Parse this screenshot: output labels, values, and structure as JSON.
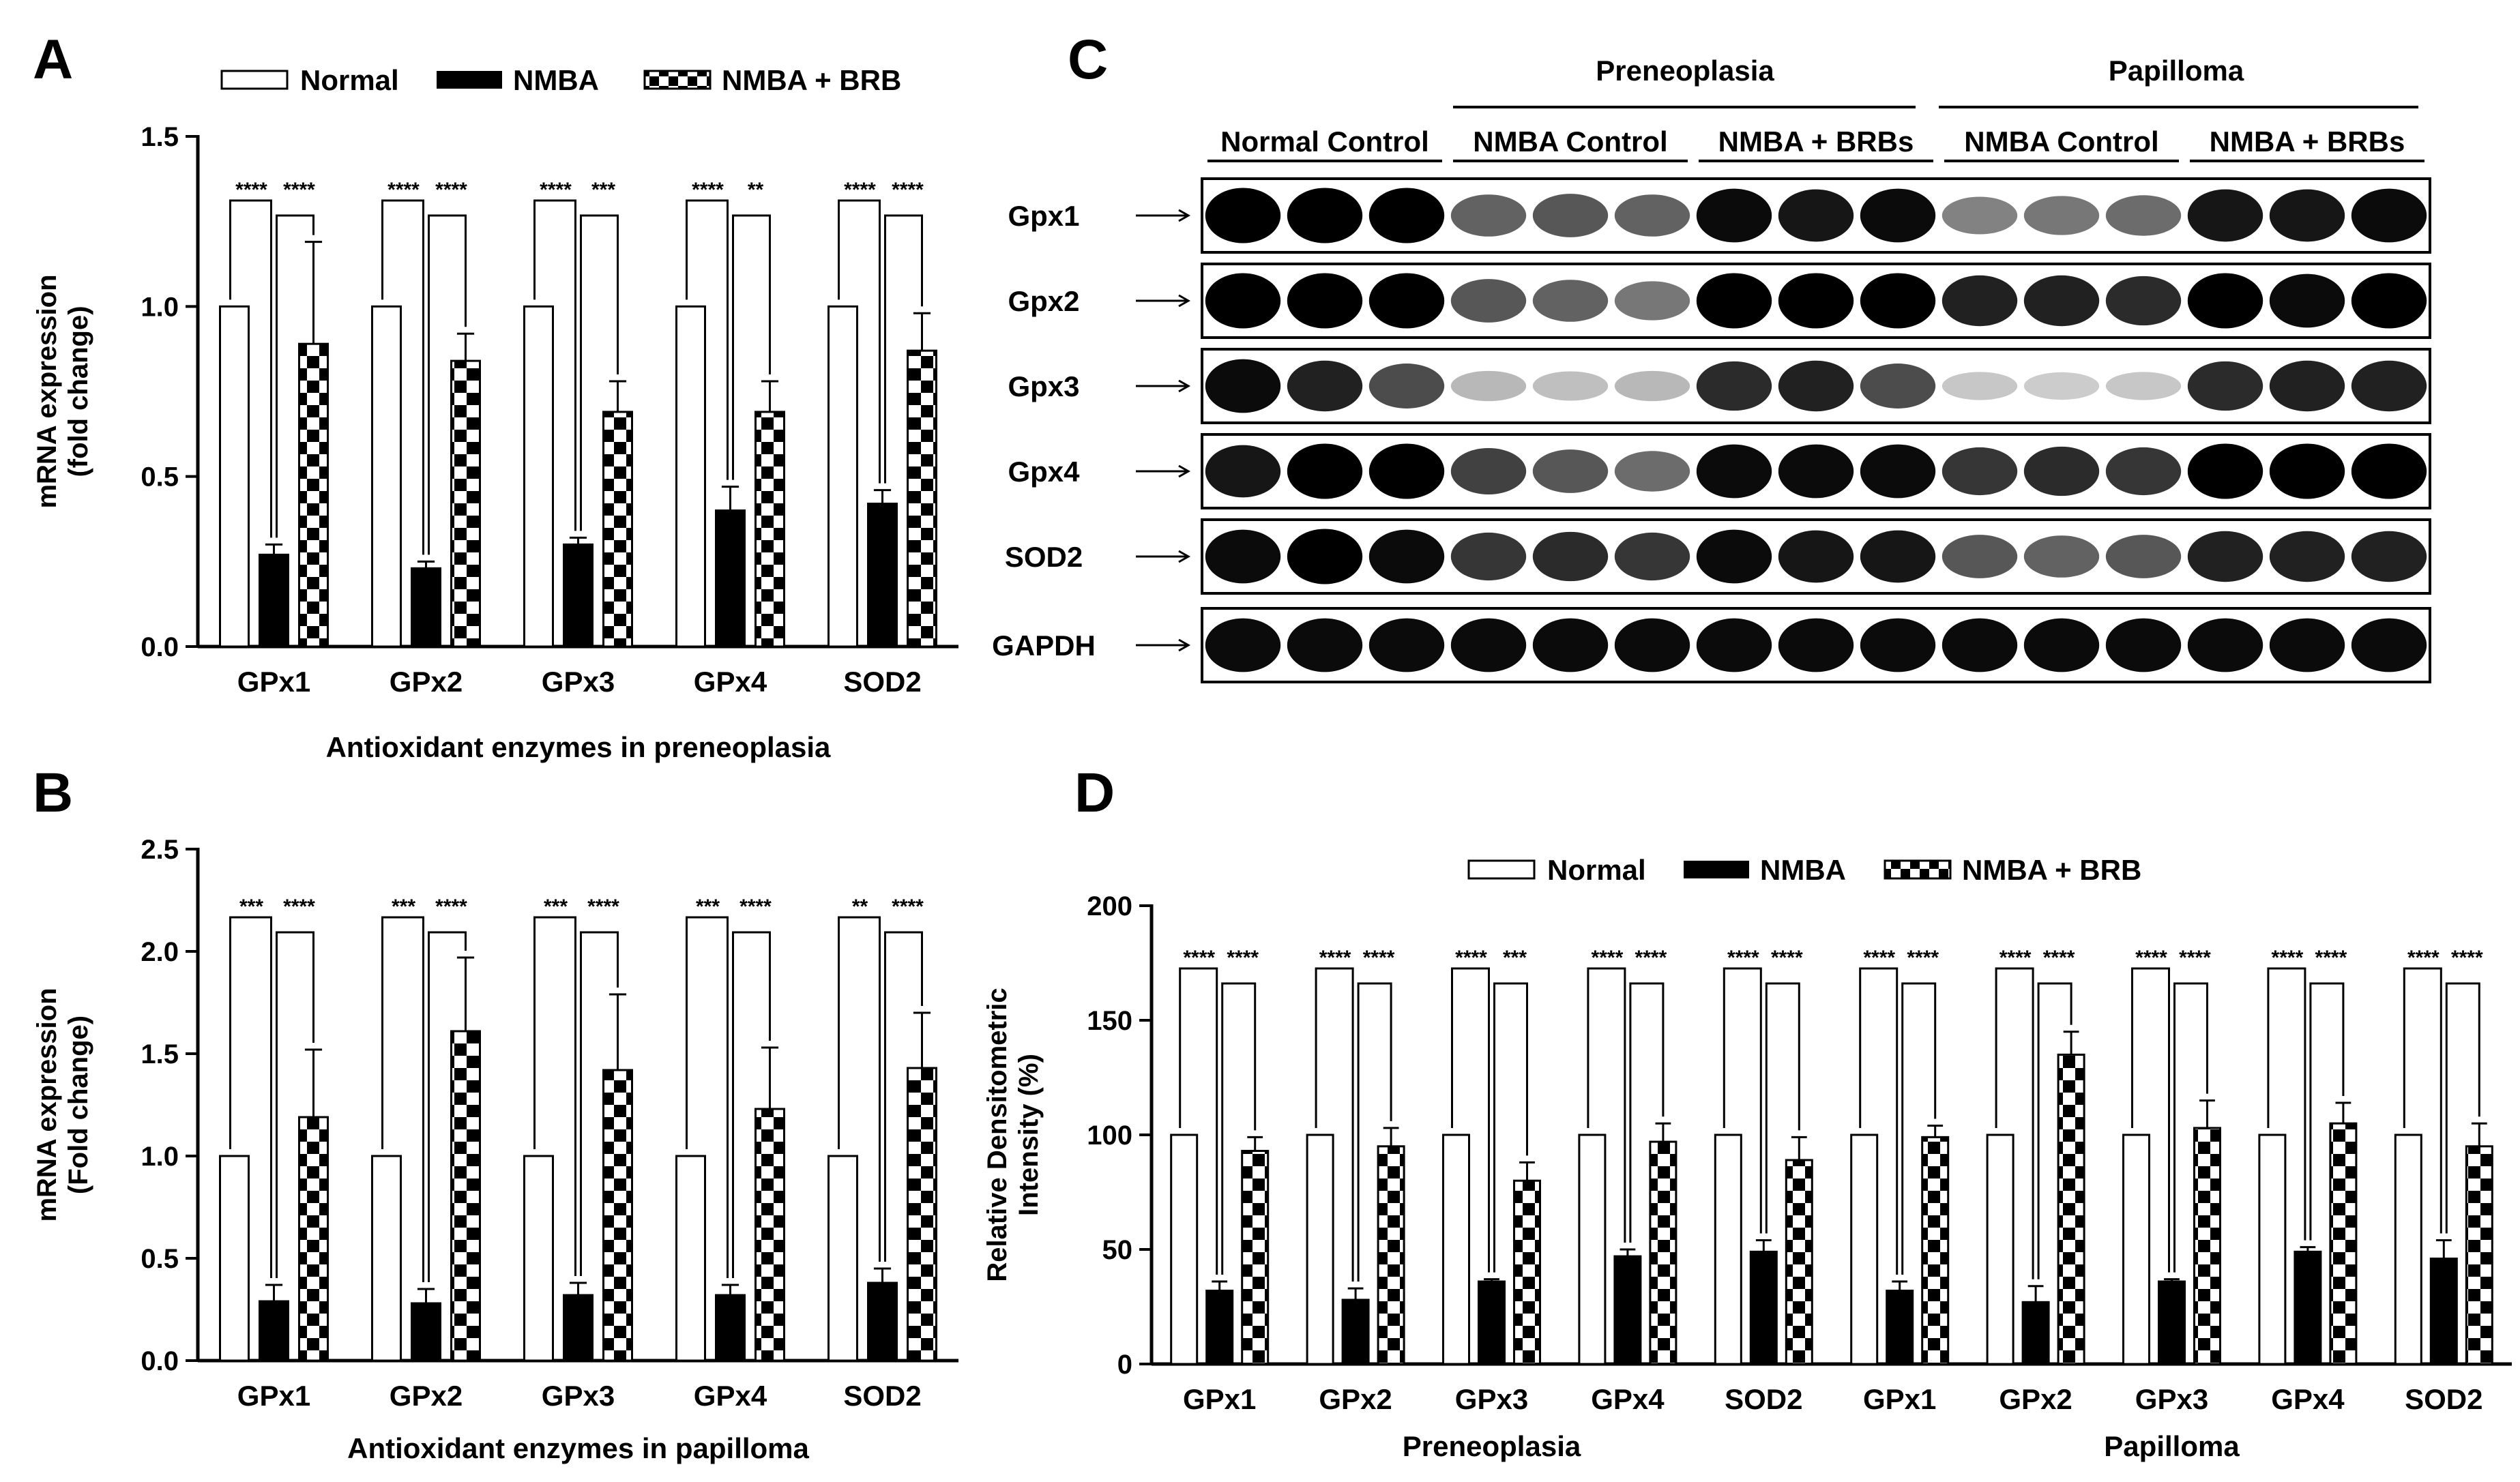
{
  "panels": {
    "A": "A",
    "B": "B",
    "C": "C",
    "D": "D"
  },
  "legend": {
    "normal": "Normal",
    "nmba": "NMBA",
    "nmba_brb": "NMBA + BRB"
  },
  "colors": {
    "normal_fill": "#ffffff",
    "nmba_fill": "#000000",
    "brb_pattern": "checkerboard black/white",
    "axis": "#000000"
  },
  "blot": {
    "group_headers": [
      "Preneoplasia",
      "Papilloma"
    ],
    "subgroups": [
      "Normal Control",
      "NMBA Control",
      "NMBA + BRBs",
      "NMBA Control",
      "NMBA + BRBs"
    ],
    "rows": [
      "Gpx1",
      "Gpx2",
      "Gpx3",
      "Gpx4",
      "SOD2",
      "GAPDH"
    ],
    "intensities": [
      [
        1.0,
        1.0,
        1.0,
        0.55,
        0.6,
        0.55,
        0.95,
        0.9,
        0.95,
        0.4,
        0.45,
        0.5,
        0.9,
        0.9,
        0.95
      ],
      [
        1.0,
        1.0,
        1.0,
        0.6,
        0.55,
        0.45,
        1.0,
        1.0,
        1.0,
        0.85,
        0.85,
        0.8,
        1.0,
        0.95,
        1.0
      ],
      [
        0.95,
        0.85,
        0.65,
        0.15,
        0.12,
        0.15,
        0.8,
        0.85,
        0.65,
        0.08,
        0.06,
        0.08,
        0.8,
        0.85,
        0.85
      ],
      [
        0.9,
        1.0,
        1.0,
        0.7,
        0.6,
        0.5,
        0.95,
        0.95,
        0.95,
        0.75,
        0.8,
        0.75,
        1.0,
        1.0,
        1.0
      ],
      [
        0.95,
        1.0,
        0.95,
        0.75,
        0.8,
        0.75,
        0.95,
        0.9,
        0.9,
        0.6,
        0.55,
        0.6,
        0.85,
        0.85,
        0.85
      ],
      [
        0.95,
        0.95,
        0.95,
        0.95,
        0.95,
        0.95,
        0.95,
        0.95,
        0.95,
        0.95,
        0.95,
        0.95,
        0.95,
        0.95,
        0.95
      ]
    ]
  },
  "chart_data": [
    {
      "type": "bar",
      "panel": "A",
      "categories": [
        "GPx1",
        "GPx2",
        "GPx3",
        "GPx4",
        "SOD2"
      ],
      "series": [
        {
          "name": "Normal",
          "values": [
            1.0,
            1.0,
            1.0,
            1.0,
            1.0
          ],
          "errors": [
            0,
            0,
            0,
            0,
            0
          ]
        },
        {
          "name": "NMBA",
          "values": [
            0.27,
            0.23,
            0.3,
            0.4,
            0.42
          ],
          "errors": [
            0.03,
            0.02,
            0.02,
            0.07,
            0.04
          ]
        },
        {
          "name": "NMBA + BRB",
          "values": [
            0.89,
            0.84,
            0.69,
            0.69,
            0.87
          ],
          "errors": [
            0.3,
            0.08,
            0.09,
            0.09,
            0.11
          ]
        }
      ],
      "significance": [
        [
          "****",
          "****"
        ],
        [
          "****",
          "****"
        ],
        [
          "****",
          "***"
        ],
        [
          "****",
          "**"
        ],
        [
          "****",
          "****"
        ]
      ],
      "xlabel": "Antioxidant enzymes in preneoplasia",
      "ylabel_lines": [
        "mRNA expression",
        "(fold change)"
      ],
      "yticks": [
        "0.0",
        "0.5",
        "1.0",
        "1.5"
      ],
      "ylim": [
        0,
        1.5
      ]
    },
    {
      "type": "bar",
      "panel": "B",
      "categories": [
        "GPx1",
        "GPx2",
        "GPx3",
        "GPx4",
        "SOD2"
      ],
      "series": [
        {
          "name": "Normal",
          "values": [
            1.0,
            1.0,
            1.0,
            1.0,
            1.0
          ],
          "errors": [
            0,
            0,
            0,
            0,
            0
          ]
        },
        {
          "name": "NMBA",
          "values": [
            0.29,
            0.28,
            0.32,
            0.32,
            0.38
          ],
          "errors": [
            0.08,
            0.07,
            0.06,
            0.05,
            0.07
          ]
        },
        {
          "name": "NMBA + BRB",
          "values": [
            1.19,
            1.61,
            1.42,
            1.23,
            1.43
          ],
          "errors": [
            0.33,
            0.36,
            0.37,
            0.3,
            0.27
          ]
        }
      ],
      "significance": [
        [
          "***",
          "****"
        ],
        [
          "***",
          "****"
        ],
        [
          "***",
          "****"
        ],
        [
          "***",
          "****"
        ],
        [
          "**",
          "****"
        ]
      ],
      "xlabel": "Antioxidant enzymes in papilloma",
      "ylabel_lines": [
        "mRNA expression",
        "(Fold change)"
      ],
      "yticks": [
        "0.0",
        "0.5",
        "1.0",
        "1.5",
        "2.0",
        "2.5"
      ],
      "ylim": [
        0,
        2.5
      ]
    },
    {
      "type": "bar",
      "panel": "D",
      "categories": [
        "GPx1",
        "GPx2",
        "GPx3",
        "GPx4",
        "SOD2",
        "GPx1",
        "GPx2",
        "GPx3",
        "GPx4",
        "SOD2"
      ],
      "groups": [
        "Preneoplasia",
        "Papilloma"
      ],
      "series": [
        {
          "name": "Normal",
          "values": [
            100,
            100,
            100,
            100,
            100,
            100,
            100,
            100,
            100,
            100
          ],
          "errors": [
            0,
            0,
            0,
            0,
            0,
            0,
            0,
            0,
            0,
            0
          ]
        },
        {
          "name": "NMBA",
          "values": [
            32,
            28,
            36,
            47,
            49,
            32,
            27,
            36,
            49,
            46
          ],
          "errors": [
            4,
            5,
            1,
            3,
            5,
            4,
            7,
            1,
            2,
            8
          ]
        },
        {
          "name": "NMBA + BRB",
          "values": [
            93,
            95,
            80,
            97,
            89,
            99,
            135,
            103,
            105,
            95
          ],
          "errors": [
            6,
            8,
            8,
            8,
            10,
            5,
            10,
            12,
            9,
            10
          ]
        }
      ],
      "significance": [
        [
          "****",
          "****"
        ],
        [
          "****",
          "****"
        ],
        [
          "****",
          "***"
        ],
        [
          "****",
          "****"
        ],
        [
          "****",
          "****"
        ],
        [
          "****",
          "****"
        ],
        [
          "****",
          "****"
        ],
        [
          "****",
          "****"
        ],
        [
          "****",
          "****"
        ],
        [
          "****",
          "****"
        ]
      ],
      "ylabel_lines": [
        "Relative Densitometric",
        "Intensity (%)"
      ],
      "yticks": [
        "0",
        "50",
        "100",
        "150",
        "200"
      ],
      "ylim": [
        0,
        200
      ]
    }
  ]
}
